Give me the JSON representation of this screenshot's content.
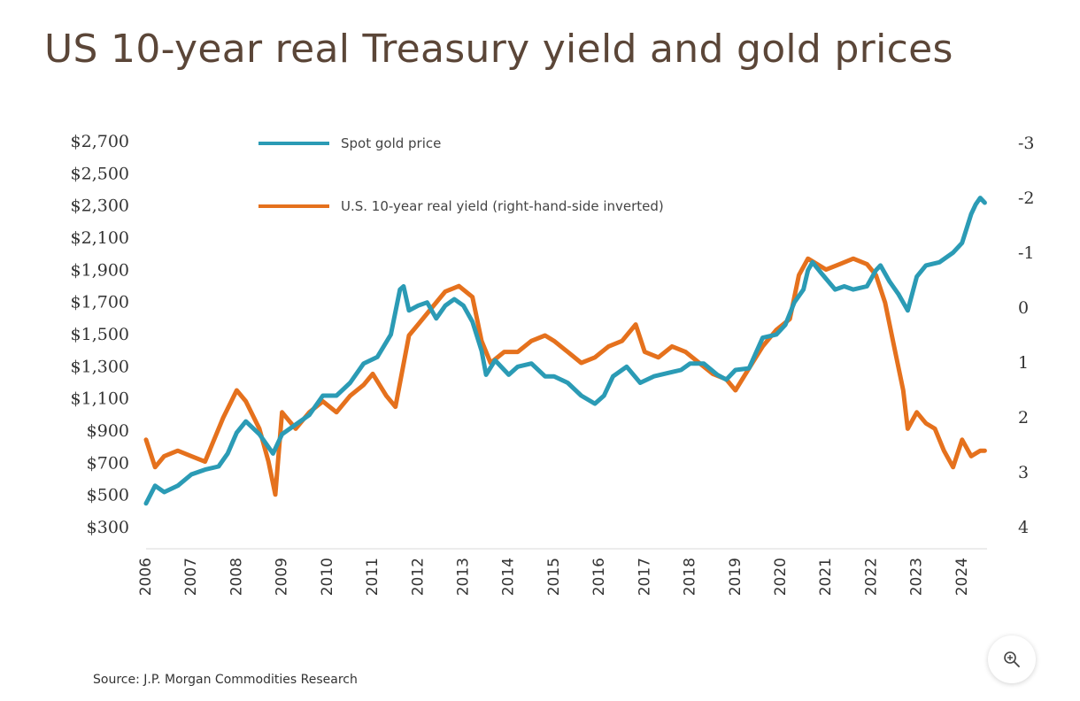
{
  "title": "US 10-year real Treasury yield and gold prices",
  "source": "Source: J.P. Morgan Commodities Research",
  "zoom_button_icon": "zoom-in-icon",
  "colors": {
    "gold": "#2b9bb5",
    "yield": "#e5711d",
    "title": "#5b4638",
    "axis": "#333333"
  },
  "chart_data": {
    "type": "line",
    "title": "US 10-year real Treasury yield and gold prices",
    "x_ticks": [
      "2006",
      "2007",
      "2008",
      "2009",
      "2010",
      "2011",
      "2012",
      "2013",
      "2014",
      "2015",
      "2016",
      "2017",
      "2018",
      "2019",
      "2020",
      "2021",
      "2022",
      "2023",
      "2024"
    ],
    "y_left": {
      "ticks": [
        "$2,700",
        "$2,500",
        "$2,300",
        "$2,100",
        "$1,900",
        "$1,700",
        "$1,500",
        "$1,300",
        "$1,100",
        "$900",
        "$700",
        "$500",
        "$300"
      ],
      "range": [
        300,
        2700
      ]
    },
    "y_right": {
      "ticks": [
        "-3",
        "-2",
        "-1",
        "0",
        "1",
        "2",
        "3",
        "4"
      ],
      "range": [
        -3,
        4
      ],
      "inverted": true
    },
    "grid": false,
    "legend_position": "top-left",
    "series": [
      {
        "name": "Spot gold price",
        "axis": "left",
        "color": "#2b9bb5",
        "x": [
          2006.0,
          2006.2,
          2006.4,
          2006.7,
          2007.0,
          2007.3,
          2007.6,
          2007.8,
          2008.0,
          2008.2,
          2008.5,
          2008.8,
          2009.0,
          2009.3,
          2009.6,
          2009.9,
          2010.2,
          2010.5,
          2010.8,
          2011.1,
          2011.4,
          2011.6,
          2011.68,
          2011.8,
          2012.0,
          2012.2,
          2012.4,
          2012.6,
          2012.8,
          2013.0,
          2013.2,
          2013.4,
          2013.5,
          2013.7,
          2014.0,
          2014.2,
          2014.5,
          2014.8,
          2015.0,
          2015.3,
          2015.6,
          2015.9,
          2016.1,
          2016.3,
          2016.6,
          2016.9,
          2017.2,
          2017.5,
          2017.8,
          2018.0,
          2018.3,
          2018.6,
          2018.8,
          2019.0,
          2019.3,
          2019.6,
          2019.9,
          2020.1,
          2020.3,
          2020.5,
          2020.6,
          2020.7,
          2020.9,
          2021.2,
          2021.4,
          2021.6,
          2021.9,
          2022.1,
          2022.2,
          2022.4,
          2022.6,
          2022.8,
          2023.0,
          2023.2,
          2023.5,
          2023.8,
          2024.0,
          2024.2,
          2024.3,
          2024.4,
          2024.5
        ],
        "y": [
          450,
          560,
          520,
          560,
          630,
          660,
          680,
          760,
          890,
          960,
          880,
          760,
          880,
          940,
          1000,
          1120,
          1120,
          1200,
          1320,
          1360,
          1500,
          1780,
          1800,
          1650,
          1680,
          1700,
          1600,
          1680,
          1720,
          1680,
          1580,
          1400,
          1250,
          1340,
          1250,
          1300,
          1320,
          1240,
          1240,
          1200,
          1120,
          1070,
          1120,
          1240,
          1300,
          1200,
          1240,
          1260,
          1280,
          1320,
          1320,
          1250,
          1220,
          1280,
          1290,
          1480,
          1500,
          1560,
          1700,
          1780,
          1900,
          1950,
          1880,
          1780,
          1800,
          1780,
          1800,
          1900,
          1930,
          1830,
          1750,
          1650,
          1860,
          1930,
          1950,
          2010,
          2070,
          2250,
          2310,
          2350,
          2320
        ]
      },
      {
        "name": "U.S. 10-year real yield (right-hand-side inverted)",
        "axis": "right",
        "color": "#e5711d",
        "x": [
          2006.0,
          2006.2,
          2006.4,
          2006.7,
          2007.0,
          2007.3,
          2007.5,
          2007.7,
          2008.0,
          2008.2,
          2008.5,
          2008.7,
          2008.85,
          2009.0,
          2009.3,
          2009.6,
          2009.9,
          2010.2,
          2010.5,
          2010.8,
          2011.0,
          2011.3,
          2011.5,
          2011.8,
          2012.0,
          2012.3,
          2012.6,
          2012.9,
          2013.2,
          2013.4,
          2013.6,
          2013.9,
          2014.2,
          2014.5,
          2014.8,
          2015.0,
          2015.3,
          2015.6,
          2015.9,
          2016.2,
          2016.5,
          2016.8,
          2017.0,
          2017.3,
          2017.6,
          2017.9,
          2018.2,
          2018.5,
          2018.8,
          2019.0,
          2019.3,
          2019.6,
          2019.9,
          2020.2,
          2020.4,
          2020.6,
          2020.8,
          2021.0,
          2021.3,
          2021.6,
          2021.9,
          2022.1,
          2022.3,
          2022.5,
          2022.7,
          2022.8,
          2023.0,
          2023.2,
          2023.4,
          2023.6,
          2023.8,
          2024.0,
          2024.2,
          2024.4,
          2024.5
        ],
        "y": [
          2.4,
          2.9,
          2.7,
          2.6,
          2.7,
          2.8,
          2.4,
          2.0,
          1.5,
          1.7,
          2.2,
          2.8,
          3.4,
          1.9,
          2.2,
          1.9,
          1.7,
          1.9,
          1.6,
          1.4,
          1.2,
          1.6,
          1.8,
          0.5,
          0.3,
          0.0,
          -0.3,
          -0.4,
          -0.2,
          0.6,
          1.0,
          0.8,
          0.8,
          0.6,
          0.5,
          0.6,
          0.8,
          1.0,
          0.9,
          0.7,
          0.6,
          0.3,
          0.8,
          0.9,
          0.7,
          0.8,
          1.0,
          1.2,
          1.3,
          1.5,
          1.1,
          0.7,
          0.4,
          0.2,
          -0.6,
          -0.9,
          -0.8,
          -0.7,
          -0.8,
          -0.9,
          -0.8,
          -0.6,
          -0.1,
          0.7,
          1.5,
          2.2,
          1.9,
          2.1,
          2.2,
          2.6,
          2.9,
          2.4,
          2.7,
          2.6,
          2.6
        ]
      }
    ]
  }
}
